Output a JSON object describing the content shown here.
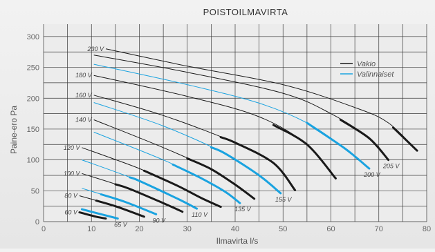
{
  "chart_data": {
    "type": "line",
    "title": "POISTOILMAVIRTA",
    "xlabel": "Ilmavirta l/s",
    "ylabel": "Paine-ero Pa",
    "xlim": [
      0,
      80
    ],
    "ylim": [
      0,
      320
    ],
    "x_ticks": [
      "0",
      "10",
      "20",
      "30",
      "40",
      "50",
      "60",
      "70",
      "80"
    ],
    "y_ticks": [
      "0",
      "50",
      "100",
      "150",
      "200",
      "250",
      "300"
    ],
    "grid": true,
    "legend_position": "top-right",
    "legend": [
      {
        "name": "Vakio",
        "color": "#1a1a1a"
      },
      {
        "name": "Valinnaiset",
        "color": "#1aa3e0"
      }
    ],
    "series": [
      {
        "label": "230 V",
        "kind": "Vakio",
        "label_side": "start",
        "points": [
          [
            13,
            280
          ],
          [
            30,
            252
          ],
          [
            50,
            222
          ],
          [
            65,
            185
          ],
          [
            72,
            160
          ],
          [
            78,
            115
          ]
        ],
        "bold_from": 73
      },
      {
        "label": "205 V",
        "kind": "Vakio",
        "label_side": "end",
        "points": [
          [
            10.5,
            270
          ],
          [
            30,
            242
          ],
          [
            50,
            208
          ],
          [
            60,
            175
          ],
          [
            68,
            135
          ],
          [
            72,
            100
          ]
        ],
        "bold_from": 62
      },
      {
        "label": "200 V",
        "kind": "Valinnaiset",
        "label_side": "end",
        "points": [
          [
            10.5,
            255
          ],
          [
            30,
            222
          ],
          [
            45,
            192
          ],
          [
            55,
            160
          ],
          [
            63,
            118
          ],
          [
            68,
            86
          ]
        ],
        "bold_from": 55
      },
      {
        "label": "180 V",
        "kind": "Vakio",
        "label_side": "start",
        "points": [
          [
            10.5,
            237
          ],
          [
            30,
            203
          ],
          [
            45,
            170
          ],
          [
            55,
            125
          ],
          [
            61,
            70
          ]
        ],
        "bold_from": 48
      },
      {
        "label": "160 V",
        "kind": "Vakio",
        "label_side": "start",
        "points": [
          [
            10.5,
            205
          ],
          [
            25,
            172
          ],
          [
            40,
            128
          ],
          [
            48,
            95
          ],
          [
            52.5,
            51
          ]
        ],
        "bold_from": 37
      },
      {
        "label": "155 V",
        "kind": "Valinnaiset",
        "label_side": "end",
        "points": [
          [
            10.5,
            193
          ],
          [
            25,
            155
          ],
          [
            38,
            110
          ],
          [
            45,
            75
          ],
          [
            49.5,
            46
          ]
        ],
        "bold_from": 35
      },
      {
        "label": "140 V",
        "kind": "Vakio",
        "label_side": "start",
        "points": [
          [
            10.5,
            165
          ],
          [
            25,
            120
          ],
          [
            35,
            85
          ],
          [
            40,
            60
          ],
          [
            44,
            37
          ]
        ],
        "bold_from": 30
      },
      {
        "label": "135 V",
        "kind": "Valinnaiset",
        "label_side": "end",
        "points": [
          [
            10.5,
            145
          ],
          [
            25,
            100
          ],
          [
            33,
            70
          ],
          [
            38,
            48
          ],
          [
            41,
            30
          ]
        ],
        "bold_from": 27
      },
      {
        "label": "120 V",
        "kind": "Vakio",
        "label_side": "start",
        "points": [
          [
            8,
            120
          ],
          [
            20,
            86
          ],
          [
            28,
            58
          ],
          [
            33,
            38
          ],
          [
            37,
            24
          ]
        ],
        "bold_from": 21
      },
      {
        "label": "110 V",
        "kind": "Valinnaiset",
        "label_side": "end",
        "points": [
          [
            8,
            100
          ],
          [
            20,
            66
          ],
          [
            28,
            37
          ],
          [
            32,
            21
          ]
        ],
        "bold_from": 18
      },
      {
        "label": "100 V",
        "kind": "Vakio",
        "label_side": "start",
        "points": [
          [
            8,
            78
          ],
          [
            18,
            53
          ],
          [
            25,
            30
          ],
          [
            29,
            16
          ]
        ],
        "bold_from": 15
      },
      {
        "label": "90 V",
        "kind": "Valinnaiset",
        "label_side": "end",
        "points": [
          [
            8,
            54
          ],
          [
            17,
            32
          ],
          [
            23.5,
            12
          ]
        ],
        "bold_from": 12
      },
      {
        "label": "80 V",
        "kind": "Vakio",
        "label_side": "start",
        "points": [
          [
            7.5,
            42
          ],
          [
            15,
            25
          ],
          [
            21,
            8
          ]
        ],
        "bold_from": 11
      },
      {
        "label": "65 V",
        "kind": "Valinnaiset",
        "label_side": "end",
        "points": [
          [
            8,
            20
          ],
          [
            12,
            12
          ],
          [
            15.5,
            5
          ]
        ],
        "bold_from": 8
      },
      {
        "label": "60 V",
        "kind": "Vakio",
        "label_side": "start",
        "points": [
          [
            7.5,
            15
          ],
          [
            11,
            8
          ],
          [
            13,
            5
          ]
        ],
        "bold_from": 7.5
      }
    ]
  }
}
